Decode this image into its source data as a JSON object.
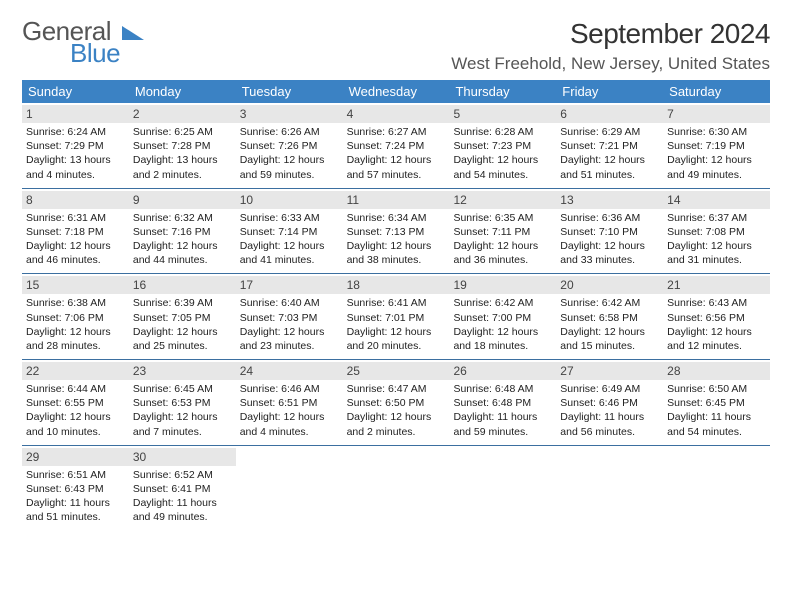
{
  "logo": {
    "line1": "General",
    "line2": "Blue"
  },
  "title": "September 2024",
  "location": "West Freehold, New Jersey, United States",
  "colors": {
    "header_bg": "#3b82c4",
    "header_text": "#ffffff",
    "daynum_bg": "#e7e7e7",
    "week_border": "#3b6fa0",
    "text": "#222222"
  },
  "day_headers": [
    "Sunday",
    "Monday",
    "Tuesday",
    "Wednesday",
    "Thursday",
    "Friday",
    "Saturday"
  ],
  "weeks": [
    [
      {
        "n": "1",
        "sr": "Sunrise: 6:24 AM",
        "ss": "Sunset: 7:29 PM",
        "dl": "Daylight: 13 hours and 4 minutes."
      },
      {
        "n": "2",
        "sr": "Sunrise: 6:25 AM",
        "ss": "Sunset: 7:28 PM",
        "dl": "Daylight: 13 hours and 2 minutes."
      },
      {
        "n": "3",
        "sr": "Sunrise: 6:26 AM",
        "ss": "Sunset: 7:26 PM",
        "dl": "Daylight: 12 hours and 59 minutes."
      },
      {
        "n": "4",
        "sr": "Sunrise: 6:27 AM",
        "ss": "Sunset: 7:24 PM",
        "dl": "Daylight: 12 hours and 57 minutes."
      },
      {
        "n": "5",
        "sr": "Sunrise: 6:28 AM",
        "ss": "Sunset: 7:23 PM",
        "dl": "Daylight: 12 hours and 54 minutes."
      },
      {
        "n": "6",
        "sr": "Sunrise: 6:29 AM",
        "ss": "Sunset: 7:21 PM",
        "dl": "Daylight: 12 hours and 51 minutes."
      },
      {
        "n": "7",
        "sr": "Sunrise: 6:30 AM",
        "ss": "Sunset: 7:19 PM",
        "dl": "Daylight: 12 hours and 49 minutes."
      }
    ],
    [
      {
        "n": "8",
        "sr": "Sunrise: 6:31 AM",
        "ss": "Sunset: 7:18 PM",
        "dl": "Daylight: 12 hours and 46 minutes."
      },
      {
        "n": "9",
        "sr": "Sunrise: 6:32 AM",
        "ss": "Sunset: 7:16 PM",
        "dl": "Daylight: 12 hours and 44 minutes."
      },
      {
        "n": "10",
        "sr": "Sunrise: 6:33 AM",
        "ss": "Sunset: 7:14 PM",
        "dl": "Daylight: 12 hours and 41 minutes."
      },
      {
        "n": "11",
        "sr": "Sunrise: 6:34 AM",
        "ss": "Sunset: 7:13 PM",
        "dl": "Daylight: 12 hours and 38 minutes."
      },
      {
        "n": "12",
        "sr": "Sunrise: 6:35 AM",
        "ss": "Sunset: 7:11 PM",
        "dl": "Daylight: 12 hours and 36 minutes."
      },
      {
        "n": "13",
        "sr": "Sunrise: 6:36 AM",
        "ss": "Sunset: 7:10 PM",
        "dl": "Daylight: 12 hours and 33 minutes."
      },
      {
        "n": "14",
        "sr": "Sunrise: 6:37 AM",
        "ss": "Sunset: 7:08 PM",
        "dl": "Daylight: 12 hours and 31 minutes."
      }
    ],
    [
      {
        "n": "15",
        "sr": "Sunrise: 6:38 AM",
        "ss": "Sunset: 7:06 PM",
        "dl": "Daylight: 12 hours and 28 minutes."
      },
      {
        "n": "16",
        "sr": "Sunrise: 6:39 AM",
        "ss": "Sunset: 7:05 PM",
        "dl": "Daylight: 12 hours and 25 minutes."
      },
      {
        "n": "17",
        "sr": "Sunrise: 6:40 AM",
        "ss": "Sunset: 7:03 PM",
        "dl": "Daylight: 12 hours and 23 minutes."
      },
      {
        "n": "18",
        "sr": "Sunrise: 6:41 AM",
        "ss": "Sunset: 7:01 PM",
        "dl": "Daylight: 12 hours and 20 minutes."
      },
      {
        "n": "19",
        "sr": "Sunrise: 6:42 AM",
        "ss": "Sunset: 7:00 PM",
        "dl": "Daylight: 12 hours and 18 minutes."
      },
      {
        "n": "20",
        "sr": "Sunrise: 6:42 AM",
        "ss": "Sunset: 6:58 PM",
        "dl": "Daylight: 12 hours and 15 minutes."
      },
      {
        "n": "21",
        "sr": "Sunrise: 6:43 AM",
        "ss": "Sunset: 6:56 PM",
        "dl": "Daylight: 12 hours and 12 minutes."
      }
    ],
    [
      {
        "n": "22",
        "sr": "Sunrise: 6:44 AM",
        "ss": "Sunset: 6:55 PM",
        "dl": "Daylight: 12 hours and 10 minutes."
      },
      {
        "n": "23",
        "sr": "Sunrise: 6:45 AM",
        "ss": "Sunset: 6:53 PM",
        "dl": "Daylight: 12 hours and 7 minutes."
      },
      {
        "n": "24",
        "sr": "Sunrise: 6:46 AM",
        "ss": "Sunset: 6:51 PM",
        "dl": "Daylight: 12 hours and 4 minutes."
      },
      {
        "n": "25",
        "sr": "Sunrise: 6:47 AM",
        "ss": "Sunset: 6:50 PM",
        "dl": "Daylight: 12 hours and 2 minutes."
      },
      {
        "n": "26",
        "sr": "Sunrise: 6:48 AM",
        "ss": "Sunset: 6:48 PM",
        "dl": "Daylight: 11 hours and 59 minutes."
      },
      {
        "n": "27",
        "sr": "Sunrise: 6:49 AM",
        "ss": "Sunset: 6:46 PM",
        "dl": "Daylight: 11 hours and 56 minutes."
      },
      {
        "n": "28",
        "sr": "Sunrise: 6:50 AM",
        "ss": "Sunset: 6:45 PM",
        "dl": "Daylight: 11 hours and 54 minutes."
      }
    ],
    [
      {
        "n": "29",
        "sr": "Sunrise: 6:51 AM",
        "ss": "Sunset: 6:43 PM",
        "dl": "Daylight: 11 hours and 51 minutes."
      },
      {
        "n": "30",
        "sr": "Sunrise: 6:52 AM",
        "ss": "Sunset: 6:41 PM",
        "dl": "Daylight: 11 hours and 49 minutes."
      },
      null,
      null,
      null,
      null,
      null
    ]
  ]
}
